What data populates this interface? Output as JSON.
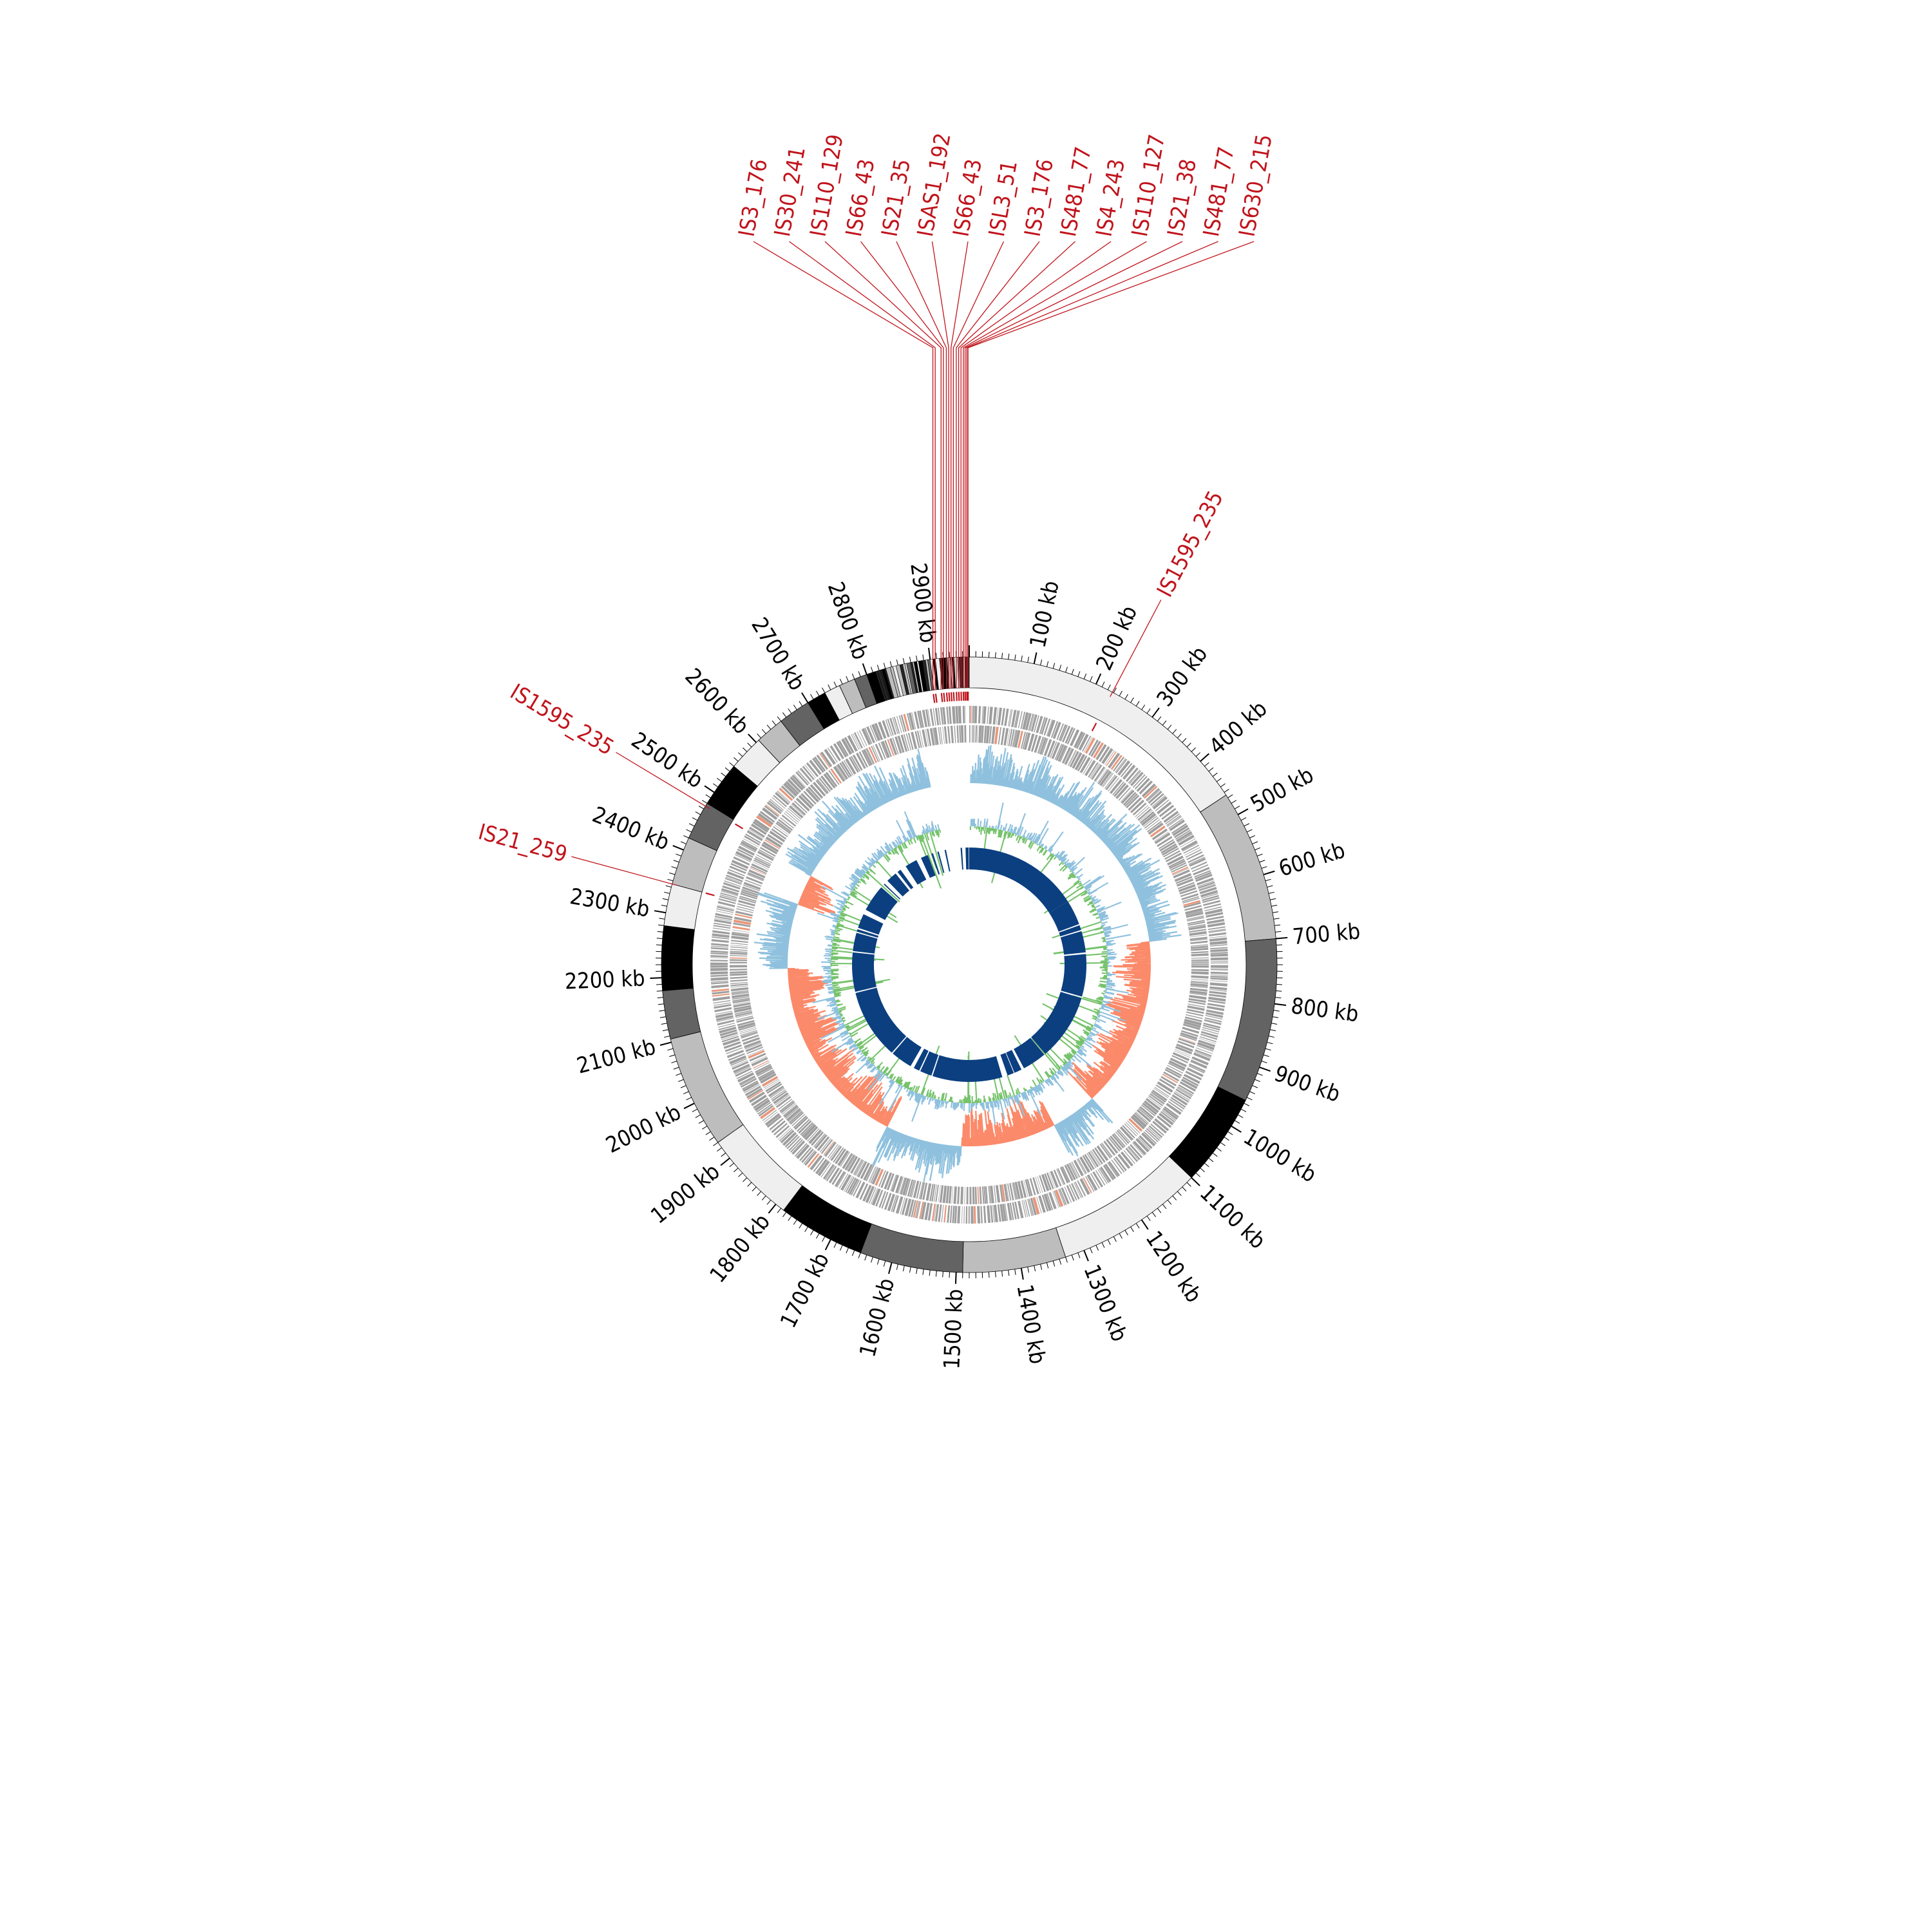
{
  "chart_data": {
    "type": "circular-genome",
    "genome_length_kb": 2960,
    "tick_unit": "kb",
    "tick_labels": [
      "100 kb",
      "200 kb",
      "300 kb",
      "400 kb",
      "500 kb",
      "600 kb",
      "700 kb",
      "800 kb",
      "900 kb",
      "1000 kb",
      "1100 kb",
      "1200 kb",
      "1300 kb",
      "1400 kb",
      "1500 kb",
      "1600 kb",
      "1700 kb",
      "1800 kb",
      "1900 kb",
      "2000 kb",
      "2100 kb",
      "2200 kb",
      "2300 kb",
      "2400 kb",
      "2500 kb",
      "2600 kb",
      "2700 kb",
      "2800 kb",
      "2900 kb"
    ],
    "contigs": [
      {
        "start": 0,
        "end": 465,
        "shade": "#efefef"
      },
      {
        "start": 465,
        "end": 700,
        "shade": "#bdbdbd"
      },
      {
        "start": 700,
        "end": 955,
        "shade": "#636363"
      },
      {
        "start": 955,
        "end": 1100,
        "shade": "#000000"
      },
      {
        "start": 1100,
        "end": 1330,
        "shade": "#efefef"
      },
      {
        "start": 1330,
        "end": 1490,
        "shade": "#bdbdbd"
      },
      {
        "start": 1490,
        "end": 1650,
        "shade": "#636363"
      },
      {
        "start": 1650,
        "end": 1785,
        "shade": "#000000"
      },
      {
        "start": 1785,
        "end": 1930,
        "shade": "#efefef"
      },
      {
        "start": 1930,
        "end": 2105,
        "shade": "#bdbdbd"
      },
      {
        "start": 2105,
        "end": 2180,
        "shade": "#636363"
      },
      {
        "start": 2180,
        "end": 2280,
        "shade": "#000000"
      },
      {
        "start": 2280,
        "end": 2345,
        "shade": "#efefef"
      },
      {
        "start": 2345,
        "end": 2420,
        "shade": "#bdbdbd"
      },
      {
        "start": 2420,
        "end": 2480,
        "shade": "#636363"
      },
      {
        "start": 2480,
        "end": 2550,
        "shade": "#000000"
      },
      {
        "start": 2550,
        "end": 2605,
        "shade": "#efefef"
      },
      {
        "start": 2605,
        "end": 2650,
        "shade": "#bdbdbd"
      },
      {
        "start": 2650,
        "end": 2700,
        "shade": "#636363"
      },
      {
        "start": 2700,
        "end": 2730,
        "shade": "#000000"
      },
      {
        "start": 2730,
        "end": 2755,
        "shade": "#efefef"
      },
      {
        "start": 2755,
        "end": 2780,
        "shade": "#bdbdbd"
      },
      {
        "start": 2780,
        "end": 2800,
        "shade": "#636363"
      },
      {
        "start": 2800,
        "end": 2814,
        "shade": "#000000"
      }
    ],
    "is_elements": [
      {
        "label": "IS1595_235",
        "pos": 228
      },
      {
        "label": "IS1595_235",
        "pos": 2475
      },
      {
        "label": "IS21_259",
        "pos": 2345
      },
      {
        "label": "IS3_176",
        "pos": 2898
      },
      {
        "label": "IS30_241",
        "pos": 2902
      },
      {
        "label": "IS110_129",
        "pos": 2912
      },
      {
        "label": "IS66_43",
        "pos": 2916
      },
      {
        "label": "IS21_35",
        "pos": 2921
      },
      {
        "label": "ISAS1_192",
        "pos": 2925
      },
      {
        "label": "IS66_43",
        "pos": 2929
      },
      {
        "label": "ISL3_51",
        "pos": 2933
      },
      {
        "label": "IS3_176",
        "pos": 2938
      },
      {
        "label": "IS481_77",
        "pos": 2942
      },
      {
        "label": "IS4_243",
        "pos": 2946
      },
      {
        "label": "IS110_127",
        "pos": 2950
      },
      {
        "label": "IS21_38",
        "pos": 2953
      },
      {
        "label": "IS481_77",
        "pos": 2956
      },
      {
        "label": "IS630_215",
        "pos": 2958
      }
    ],
    "tracks": {
      "gc_skew": {
        "positive_color": "#8fc1de",
        "negative_color": "#fb8a6a"
      },
      "gc_content": {
        "above_color": "#8fc1de",
        "below_color": "#76c36c"
      },
      "blast_hits": {
        "color": "#0b3f80",
        "segments": [
          [
            0,
            470
          ],
          [
            470,
            573
          ],
          [
            578,
            598
          ],
          [
            603,
            690
          ],
          [
            697,
            870
          ],
          [
            876,
            1147
          ],
          [
            1152,
            1251
          ],
          [
            1262,
            1293
          ],
          [
            1296,
            1323
          ],
          [
            1345,
            1630
          ],
          [
            1635,
            1683
          ],
          [
            1688,
            1712
          ],
          [
            1727,
            1815
          ],
          [
            1820,
            2105
          ],
          [
            2110,
            2270
          ],
          [
            2275,
            2350
          ],
          [
            2355,
            2365
          ],
          [
            2371,
            2430
          ],
          [
            2450,
            2560
          ],
          [
            2575,
            2580
          ],
          [
            2596,
            2640
          ],
          [
            2650,
            2665
          ],
          [
            2690,
            2740
          ],
          [
            2760,
            2790
          ],
          [
            2805,
            2812
          ],
          [
            2830,
            2836
          ],
          [
            2860,
            2866
          ],
          [
            2925,
            2931
          ],
          [
            2945,
            2958
          ]
        ]
      }
    }
  }
}
